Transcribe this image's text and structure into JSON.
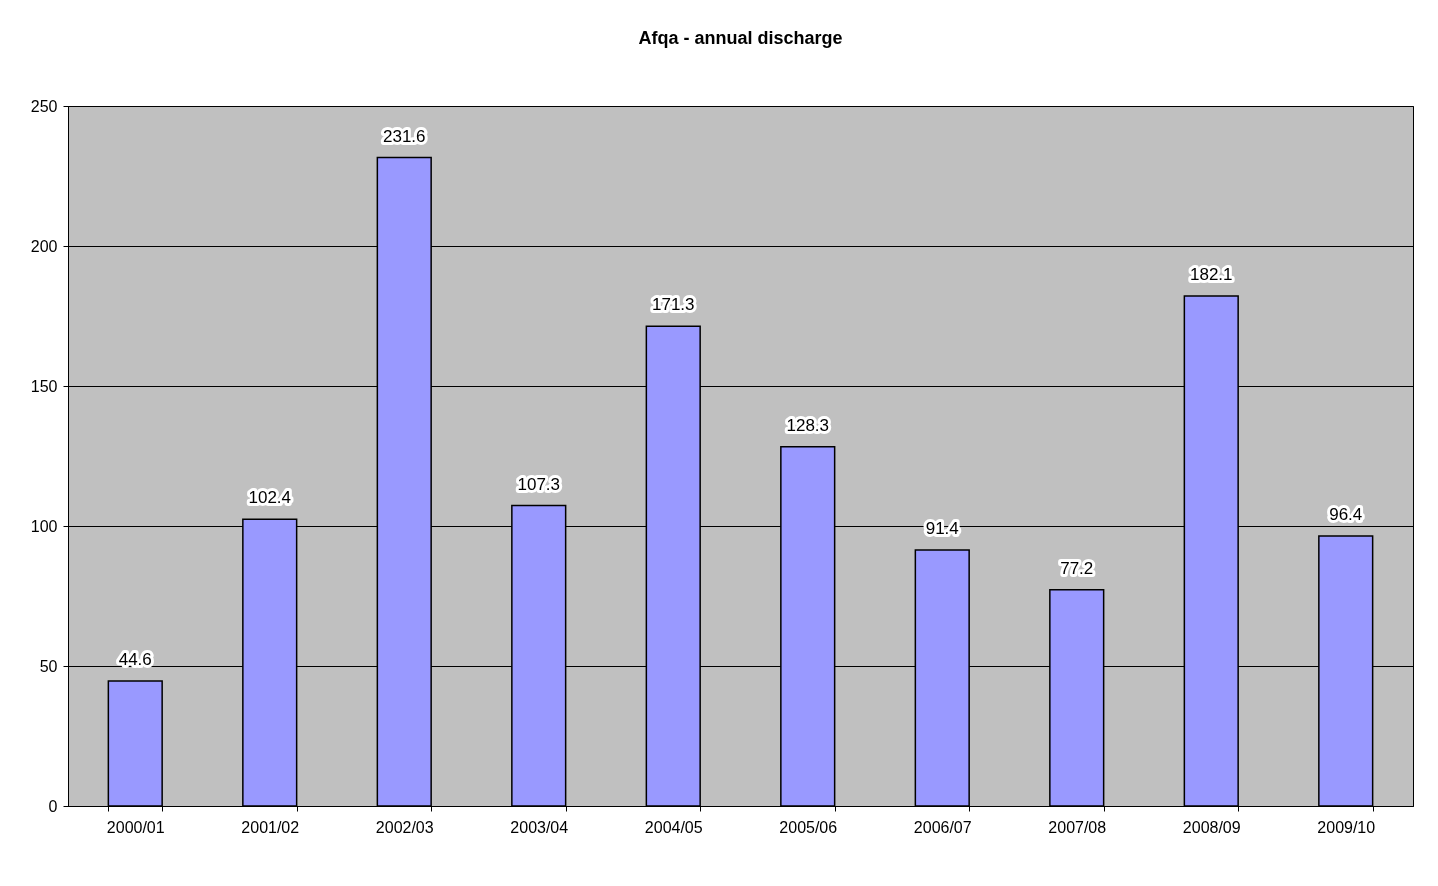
{
  "chart_data": {
    "type": "bar",
    "title": "Afqa - annual discharge",
    "categories": [
      "2000/01",
      "2001/02",
      "2002/03",
      "2003/04",
      "2004/05",
      "2005/06",
      "2006/07",
      "2007/08",
      "2008/09",
      "2009/10"
    ],
    "values": [
      44.6,
      102.4,
      231.6,
      107.3,
      171.3,
      128.3,
      91.4,
      77.2,
      182.1,
      96.4
    ],
    "color": "#9999ff",
    "ylim": [
      0,
      250
    ],
    "yticks": [
      0,
      50,
      100,
      150,
      200,
      250
    ],
    "grid": "y",
    "data_labels": true
  }
}
